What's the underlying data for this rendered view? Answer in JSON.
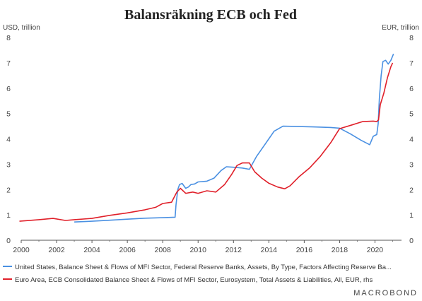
{
  "chart_data": {
    "type": "line",
    "title": "Balansräkning ECB och Fed",
    "ylabel_left": "USD, trillion",
    "ylabel_right": "EUR, trillion",
    "xlim": [
      2000,
      2021.5
    ],
    "ylim": [
      0,
      8
    ],
    "x_ticks": [
      "2000",
      "2002",
      "2004",
      "2006",
      "2008",
      "2010",
      "2012",
      "2014",
      "2016",
      "2018",
      "2020"
    ],
    "y_ticks": [
      "0",
      "1",
      "2",
      "3",
      "4",
      "5",
      "6",
      "7",
      "8"
    ],
    "grid": false,
    "legend_position": "bottom",
    "series": [
      {
        "name": "United States, Balance Sheet & Flows of MFI Sector, Federal Reserve Banks, Assets, By Type, Factors Affecting Reserve Ba...",
        "color": "#4a90e2",
        "axis": "left",
        "points": [
          [
            2003.0,
            0.72
          ],
          [
            2004.0,
            0.75
          ],
          [
            2005.0,
            0.79
          ],
          [
            2006.0,
            0.83
          ],
          [
            2007.0,
            0.87
          ],
          [
            2008.0,
            0.89
          ],
          [
            2008.7,
            0.91
          ],
          [
            2008.75,
            1.4
          ],
          [
            2008.85,
            2.0
          ],
          [
            2008.95,
            2.2
          ],
          [
            2009.1,
            2.24
          ],
          [
            2009.3,
            2.05
          ],
          [
            2009.45,
            2.1
          ],
          [
            2009.6,
            2.2
          ],
          [
            2009.8,
            2.22
          ],
          [
            2010.0,
            2.3
          ],
          [
            2010.5,
            2.33
          ],
          [
            2010.9,
            2.45
          ],
          [
            2011.3,
            2.75
          ],
          [
            2011.6,
            2.9
          ],
          [
            2012.0,
            2.88
          ],
          [
            2012.5,
            2.85
          ],
          [
            2012.9,
            2.8
          ],
          [
            2013.3,
            3.3
          ],
          [
            2013.8,
            3.8
          ],
          [
            2014.3,
            4.3
          ],
          [
            2014.8,
            4.5
          ],
          [
            2015.5,
            4.49
          ],
          [
            2016.5,
            4.47
          ],
          [
            2017.5,
            4.45
          ],
          [
            2018.0,
            4.42
          ],
          [
            2018.6,
            4.2
          ],
          [
            2019.2,
            3.95
          ],
          [
            2019.7,
            3.77
          ],
          [
            2019.9,
            4.1
          ],
          [
            2020.1,
            4.17
          ],
          [
            2020.18,
            4.6
          ],
          [
            2020.25,
            5.6
          ],
          [
            2020.35,
            6.5
          ],
          [
            2020.45,
            7.05
          ],
          [
            2020.6,
            7.1
          ],
          [
            2020.75,
            6.95
          ],
          [
            2020.9,
            7.1
          ],
          [
            2021.05,
            7.35
          ]
        ]
      },
      {
        "name": "Euro Area, ECB Consolidated Balance Sheet & Flows of MFI Sector, Eurosystem, Total Assets & Liabilities, All, EUR, rhs",
        "color": "#e0202a",
        "axis": "right",
        "points": [
          [
            1999.9,
            0.75
          ],
          [
            2001.0,
            0.81
          ],
          [
            2001.8,
            0.86
          ],
          [
            2002.5,
            0.78
          ],
          [
            2003.0,
            0.81
          ],
          [
            2004.0,
            0.86
          ],
          [
            2005.0,
            0.98
          ],
          [
            2006.0,
            1.08
          ],
          [
            2007.0,
            1.2
          ],
          [
            2007.6,
            1.3
          ],
          [
            2008.0,
            1.45
          ],
          [
            2008.5,
            1.5
          ],
          [
            2008.8,
            1.9
          ],
          [
            2009.0,
            2.05
          ],
          [
            2009.3,
            1.85
          ],
          [
            2009.7,
            1.9
          ],
          [
            2010.0,
            1.85
          ],
          [
            2010.5,
            1.95
          ],
          [
            2011.0,
            1.9
          ],
          [
            2011.5,
            2.2
          ],
          [
            2011.9,
            2.6
          ],
          [
            2012.2,
            2.95
          ],
          [
            2012.5,
            3.05
          ],
          [
            2012.9,
            3.05
          ],
          [
            2013.2,
            2.7
          ],
          [
            2013.6,
            2.45
          ],
          [
            2014.0,
            2.25
          ],
          [
            2014.5,
            2.1
          ],
          [
            2014.9,
            2.03
          ],
          [
            2015.2,
            2.15
          ],
          [
            2015.7,
            2.5
          ],
          [
            2016.3,
            2.85
          ],
          [
            2016.9,
            3.3
          ],
          [
            2017.5,
            3.85
          ],
          [
            2018.0,
            4.4
          ],
          [
            2018.7,
            4.55
          ],
          [
            2019.3,
            4.68
          ],
          [
            2019.9,
            4.7
          ],
          [
            2020.1,
            4.68
          ],
          [
            2020.2,
            4.75
          ],
          [
            2020.3,
            5.35
          ],
          [
            2020.5,
            5.8
          ],
          [
            2020.7,
            6.4
          ],
          [
            2020.9,
            6.85
          ],
          [
            2021.0,
            7.0
          ]
        ]
      }
    ]
  },
  "branding": "MACROBOND"
}
